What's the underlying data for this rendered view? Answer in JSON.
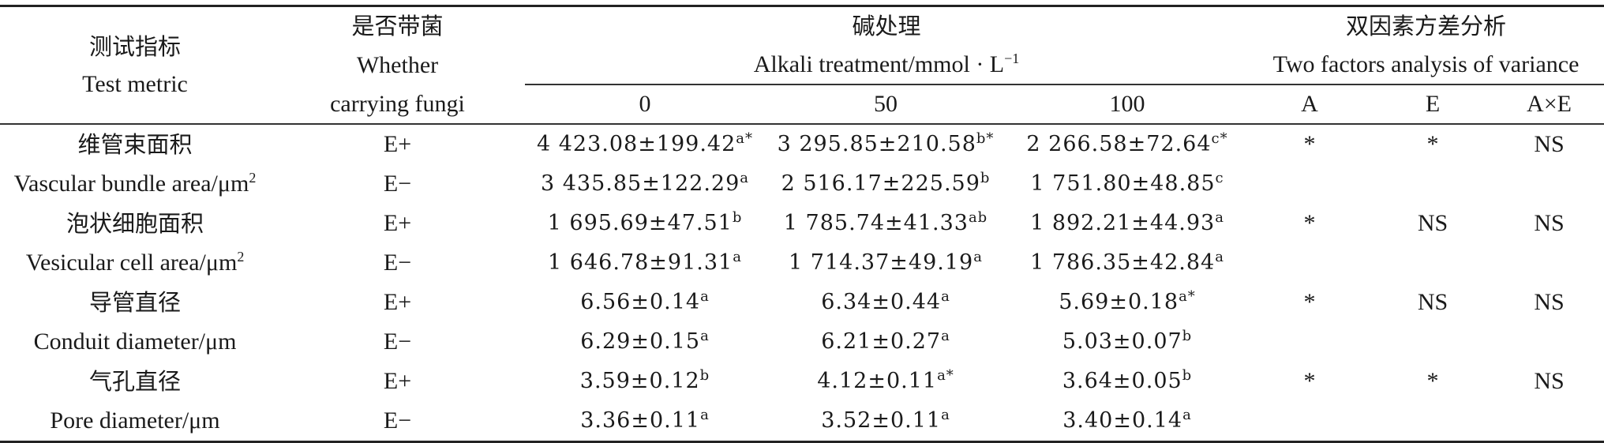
{
  "header": {
    "test_metric_cn": "测试指标",
    "test_metric_en": "Test metric",
    "fungi_cn": "是否带菌",
    "fungi_en_1": "Whether",
    "fungi_en_2": "carrying fungi",
    "alkali_cn": "碱处理",
    "alkali_en": "Alkali treatment/mmol · L",
    "alkali_en_sup": "−1",
    "anova_cn": "双因素方差分析",
    "anova_en": "Two factors analysis of variance",
    "levels": [
      "0",
      "50",
      "100"
    ],
    "factors": [
      "A",
      "E",
      "A×E"
    ]
  },
  "rows": [
    {
      "label": "维管束面积",
      "group": "E+",
      "values": [
        {
          "v": "4 423.08±199.42",
          "s": "a*"
        },
        {
          "v": "3 295.85±210.58",
          "s": "b*"
        },
        {
          "v": "2 266.58±72.64",
          "s": "c*"
        }
      ],
      "anova": [
        "*",
        "*",
        "NS"
      ]
    },
    {
      "label": "Vascular bundle area/μm",
      "label_sup": "2",
      "group": "E−",
      "values": [
        {
          "v": "3 435.85±122.29",
          "s": "a"
        },
        {
          "v": "2 516.17±225.59",
          "s": "b"
        },
        {
          "v": "1 751.80±48.85",
          "s": "c"
        }
      ],
      "anova": [
        "",
        "",
        ""
      ]
    },
    {
      "label": "泡状细胞面积",
      "group": "E+",
      "values": [
        {
          "v": "1 695.69±47.51",
          "s": "b"
        },
        {
          "v": "1 785.74±41.33",
          "s": "ab"
        },
        {
          "v": "1 892.21±44.93",
          "s": "a"
        }
      ],
      "anova": [
        "*",
        "NS",
        "NS"
      ]
    },
    {
      "label": "Vesicular cell area/μm",
      "label_sup": "2",
      "group": "E−",
      "values": [
        {
          "v": "1 646.78±91.31",
          "s": "a"
        },
        {
          "v": "1 714.37±49.19",
          "s": "a"
        },
        {
          "v": "1 786.35±42.84",
          "s": "a"
        }
      ],
      "anova": [
        "",
        "",
        ""
      ]
    },
    {
      "label": "导管直径",
      "group": "E+",
      "values": [
        {
          "v": "6.56±0.14",
          "s": "a"
        },
        {
          "v": "6.34±0.44",
          "s": "a"
        },
        {
          "v": "5.69±0.18",
          "s": "a*"
        }
      ],
      "anova": [
        "*",
        "NS",
        "NS"
      ]
    },
    {
      "label": "Conduit diameter/μm",
      "group": "E−",
      "values": [
        {
          "v": "6.29±0.15",
          "s": "a"
        },
        {
          "v": "6.21±0.27",
          "s": "a"
        },
        {
          "v": "5.03±0.07",
          "s": "b"
        }
      ],
      "anova": [
        "",
        "",
        ""
      ]
    },
    {
      "label": "气孔直径",
      "group": "E+",
      "values": [
        {
          "v": "3.59±0.12",
          "s": "b"
        },
        {
          "v": "4.12±0.11",
          "s": "a*"
        },
        {
          "v": "3.64±0.05",
          "s": "b"
        }
      ],
      "anova": [
        "*",
        "*",
        "NS"
      ]
    },
    {
      "label": "Pore diameter/μm",
      "group": "E−",
      "values": [
        {
          "v": "3.36±0.11",
          "s": "a"
        },
        {
          "v": "3.52±0.11",
          "s": "a"
        },
        {
          "v": "3.40±0.14",
          "s": "a"
        }
      ],
      "anova": [
        "",
        "",
        ""
      ]
    }
  ]
}
